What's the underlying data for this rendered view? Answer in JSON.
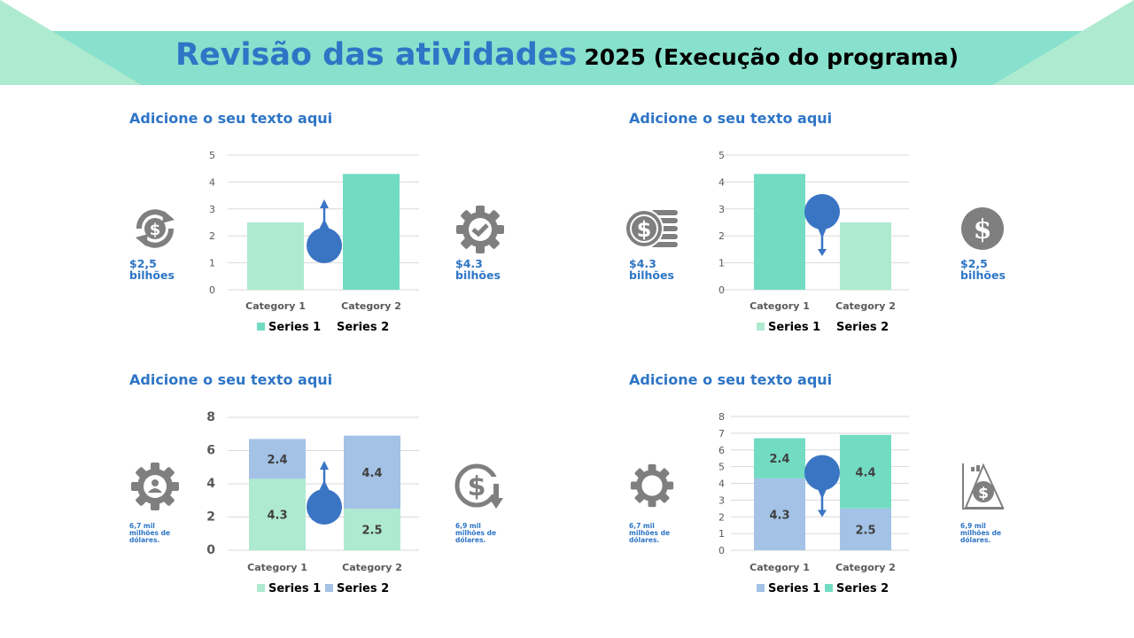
{
  "page": {
    "title": "Revisão das atividades",
    "subtitle": "2025 (Execução do programa)"
  },
  "colors": {
    "teal_dark": "#72dcc3",
    "teal_light": "#aeeacf",
    "blue_light": "#a3c2e6",
    "accent_blue": "#3a75c4",
    "icon_gray": "#7f7f7f",
    "text_blue": "#2e75c6"
  },
  "quadrants": [
    {
      "heading": "Adicione o seu texto aqui",
      "left_icon": "dollar-cycle-icon",
      "left_note": "$2,5 bilhões",
      "right_icon": "gear-check-icon",
      "right_note": "$4.3 bilhões"
    },
    {
      "heading": "Adicione o seu texto aqui",
      "left_icon": "coin-stack-dollar-icon",
      "left_note": "$4.3 bilhões",
      "right_icon": "dollar-circle-icon",
      "right_note": "$2,5 bilhões"
    },
    {
      "heading": "Adicione o seu texto aqui",
      "left_icon": "gear-user-icon",
      "left_note": "6,7 mil milhões de dólares.",
      "right_icon": "dollar-down-icon",
      "right_note": "6,9 mil milhões de dólares."
    },
    {
      "heading": "Adicione o seu texto aqui",
      "left_icon": "gear-icon",
      "left_note": "6,7 mil milhões de dólares.",
      "right_icon": "dollar-triangle-chart-icon",
      "right_note": "6,9 mil milhões de dólares."
    }
  ],
  "chart_data": [
    {
      "type": "bar",
      "categories": [
        "Category 1",
        "Category 2"
      ],
      "ylim": [
        0,
        5
      ],
      "yticks": [
        0,
        1,
        2,
        3,
        4,
        5
      ],
      "grid": true,
      "legend": "bottom",
      "marker": "up",
      "series": [
        {
          "name": "Series 1",
          "color": "#72dcc3",
          "values": [
            null,
            4.3
          ]
        },
        {
          "name": "Series 2",
          "color": "#aeeacf",
          "values": [
            2.5,
            null
          ]
        }
      ],
      "legend_swatch": [
        true,
        false
      ]
    },
    {
      "type": "bar",
      "categories": [
        "Category 1",
        "Category 2"
      ],
      "ylim": [
        0,
        5
      ],
      "yticks": [
        0,
        1,
        2,
        3,
        4,
        5
      ],
      "grid": true,
      "legend": "bottom",
      "marker": "down",
      "series": [
        {
          "name": "Series 1",
          "color": "#72dcc3",
          "values": [
            4.3,
            null
          ]
        },
        {
          "name": "Series 2",
          "color": "#aeeacf",
          "values": [
            null,
            2.5
          ]
        }
      ],
      "legend_swatch": [
        true,
        false
      ],
      "legend_swatch_color": [
        "#aeeacf",
        null
      ]
    },
    {
      "type": "bar",
      "stacked": true,
      "categories": [
        "Category 1",
        "Category 2"
      ],
      "ylim": [
        0,
        8
      ],
      "yticks": [
        0,
        2,
        4,
        6,
        8
      ],
      "grid": true,
      "legend": "bottom",
      "marker": "up",
      "show_labels": true,
      "series": [
        {
          "name": "Series 1",
          "color": "#aeeacf",
          "values": [
            4.3,
            2.5
          ]
        },
        {
          "name": "Series 2",
          "color": "#a3c2e6",
          "values": [
            2.4,
            4.4
          ]
        }
      ],
      "legend_swatch": [
        true,
        true
      ]
    },
    {
      "type": "bar",
      "stacked": true,
      "categories": [
        "Category 1",
        "Category 2"
      ],
      "ylim": [
        0,
        8
      ],
      "yticks": [
        0,
        1,
        2,
        3,
        4,
        5,
        6,
        7,
        8
      ],
      "grid": true,
      "legend": "bottom",
      "marker": "down",
      "show_labels": true,
      "series": [
        {
          "name": "Series 1",
          "colors": [
            "#a3c2e6",
            "#a3c2e6"
          ],
          "color": "#a3c2e6",
          "values": [
            4.3,
            2.5
          ]
        },
        {
          "name": "Series 2",
          "colors": [
            "#72dcc3",
            "#72dcc3"
          ],
          "color": "#72dcc3",
          "values": [
            2.4,
            4.4
          ]
        }
      ],
      "legend_swatch": [
        true,
        true
      ]
    }
  ]
}
